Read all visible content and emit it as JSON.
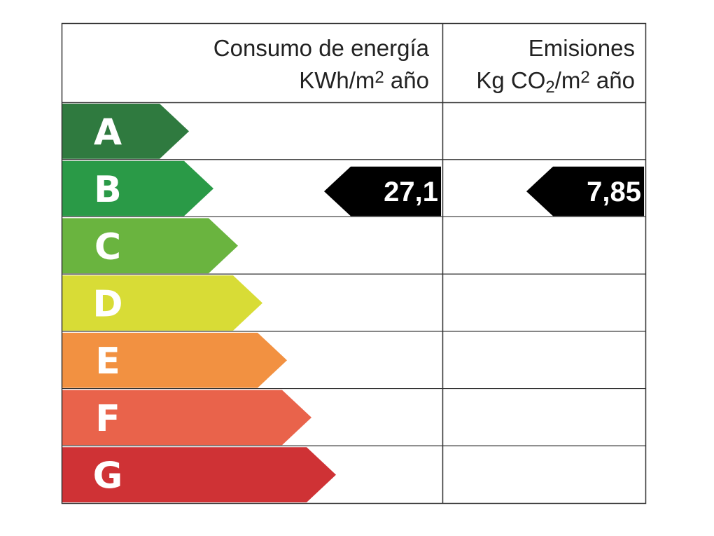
{
  "header": {
    "energy": {
      "title": "Consumo de energía",
      "unit": [
        "KWh/m",
        "2",
        " año"
      ]
    },
    "emissions": {
      "title": "Emisiones",
      "unit": [
        "Kg CO",
        "2",
        "/m",
        "2",
        " año"
      ]
    }
  },
  "classes": [
    {
      "letter": "A",
      "color": "#2f7a3f"
    },
    {
      "letter": "B",
      "color": "#2a9a47"
    },
    {
      "letter": "C",
      "color": "#6ab43f"
    },
    {
      "letter": "D",
      "color": "#d8dc36"
    },
    {
      "letter": "E",
      "color": "#f29141"
    },
    {
      "letter": "F",
      "color": "#e9634b"
    },
    {
      "letter": "G",
      "color": "#cf3235"
    }
  ],
  "energy": {
    "class": "B",
    "value": "27,1"
  },
  "emissions": {
    "class": "B",
    "value": "7,85"
  }
}
